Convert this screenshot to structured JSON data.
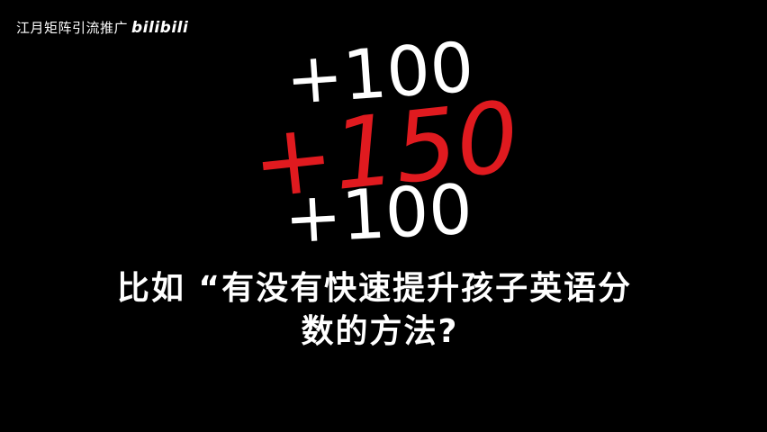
{
  "watermark": {
    "channel": "江月矩阵引流推广",
    "logo": "bilibili"
  },
  "handwriting": {
    "top": "+100",
    "middle": "+150",
    "bottom": "+100"
  },
  "caption": {
    "line1": "比如 “有没有快速提升孩子英语分",
    "line2": "数的方法?"
  },
  "colors": {
    "background": "#000000",
    "text": "#ffffff",
    "accent": "#e01a1f"
  }
}
